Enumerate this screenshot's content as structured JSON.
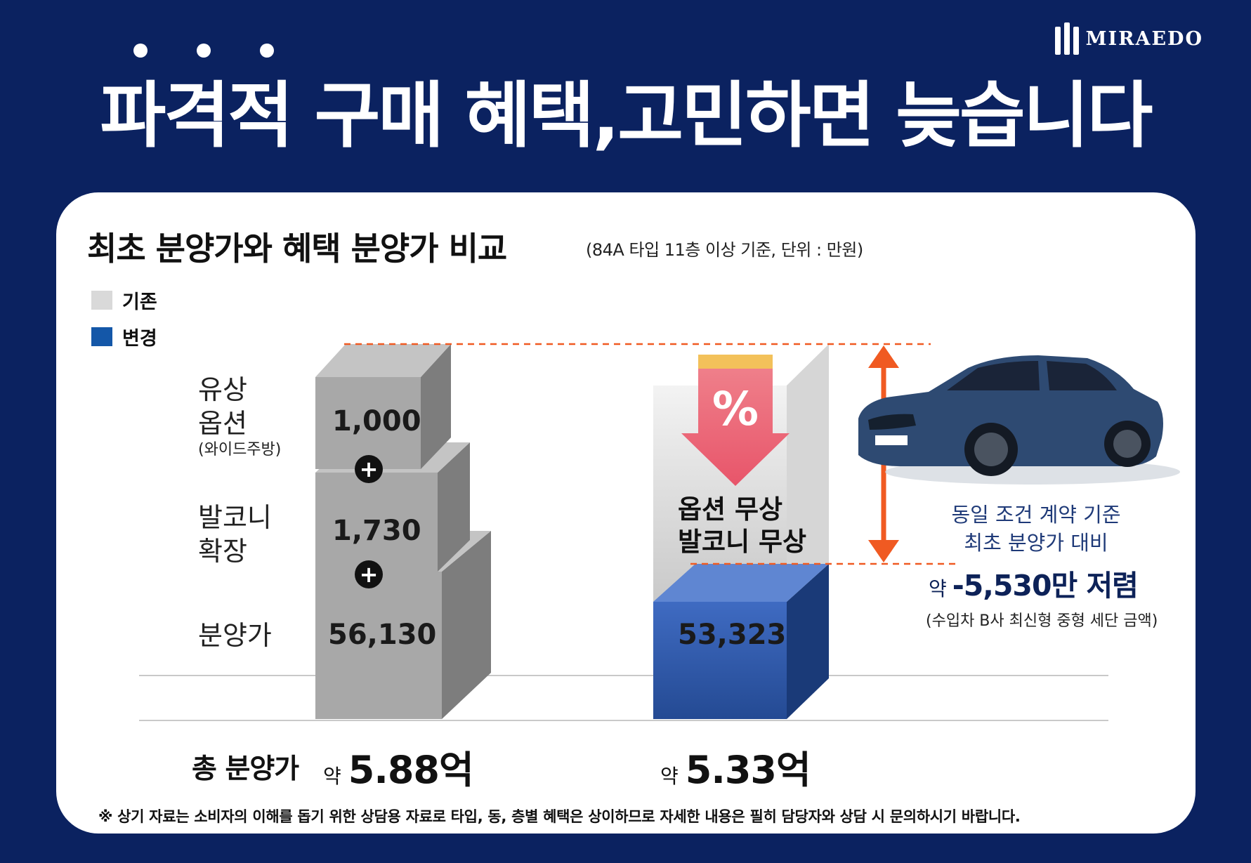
{
  "brand": {
    "name": "MIRAEDO"
  },
  "headline": "파격적 구매 혜택,고민하면 늦습니다",
  "panel": {
    "title": "최초 분양가와 혜택 분양가 비교",
    "subtitle": "(84A 타입 11층 이상 기준, 단위 : 만원)",
    "footnote": "※ 상기 자료는 소비자의 이해를 돕기 위한 상담용 자료로 타입, 동, 층별 혜택은 상이하므로 자세한 내용은 필히 담당자와 상담 시 문의하시기 바랍니다."
  },
  "legend": [
    {
      "label": "기존",
      "color": "#d9d9d9"
    },
    {
      "label": "변경",
      "color": "#1457a8"
    }
  ],
  "row_labels": {
    "option": "유상\n옵션",
    "option_note": "(와이드주방)",
    "balcony": "발코니\n확장",
    "price": "분양가"
  },
  "benefit_text": "옵션 무상\n발코니 무상",
  "totals": {
    "label": "총 분양가",
    "prefix": "약",
    "original": "5.88억",
    "discounted": "5.33억"
  },
  "saving": {
    "condition": "동일 조건 계약 기준\n최초 분양가 대비",
    "prefix": "약",
    "amount": "-5,530만 저렴",
    "note": "(수입차 B사 최신형 중형 세단 금액)"
  },
  "chart_data": {
    "type": "bar",
    "categories": [
      "기존",
      "변경"
    ],
    "series": [
      {
        "name": "분양가",
        "values": [
          56130,
          53323
        ]
      },
      {
        "name": "발코니 확장",
        "values": [
          1730,
          0
        ]
      },
      {
        "name": "유상 옵션",
        "values": [
          1000,
          0
        ]
      }
    ],
    "labels": [
      "1,000",
      "1,730",
      "56,130",
      "53,323"
    ],
    "colors": {
      "original": "#a8a8a8",
      "changed": "#2f5aa8",
      "accent": "#f05a22"
    },
    "legend_position": "top-left",
    "grid": false
  }
}
